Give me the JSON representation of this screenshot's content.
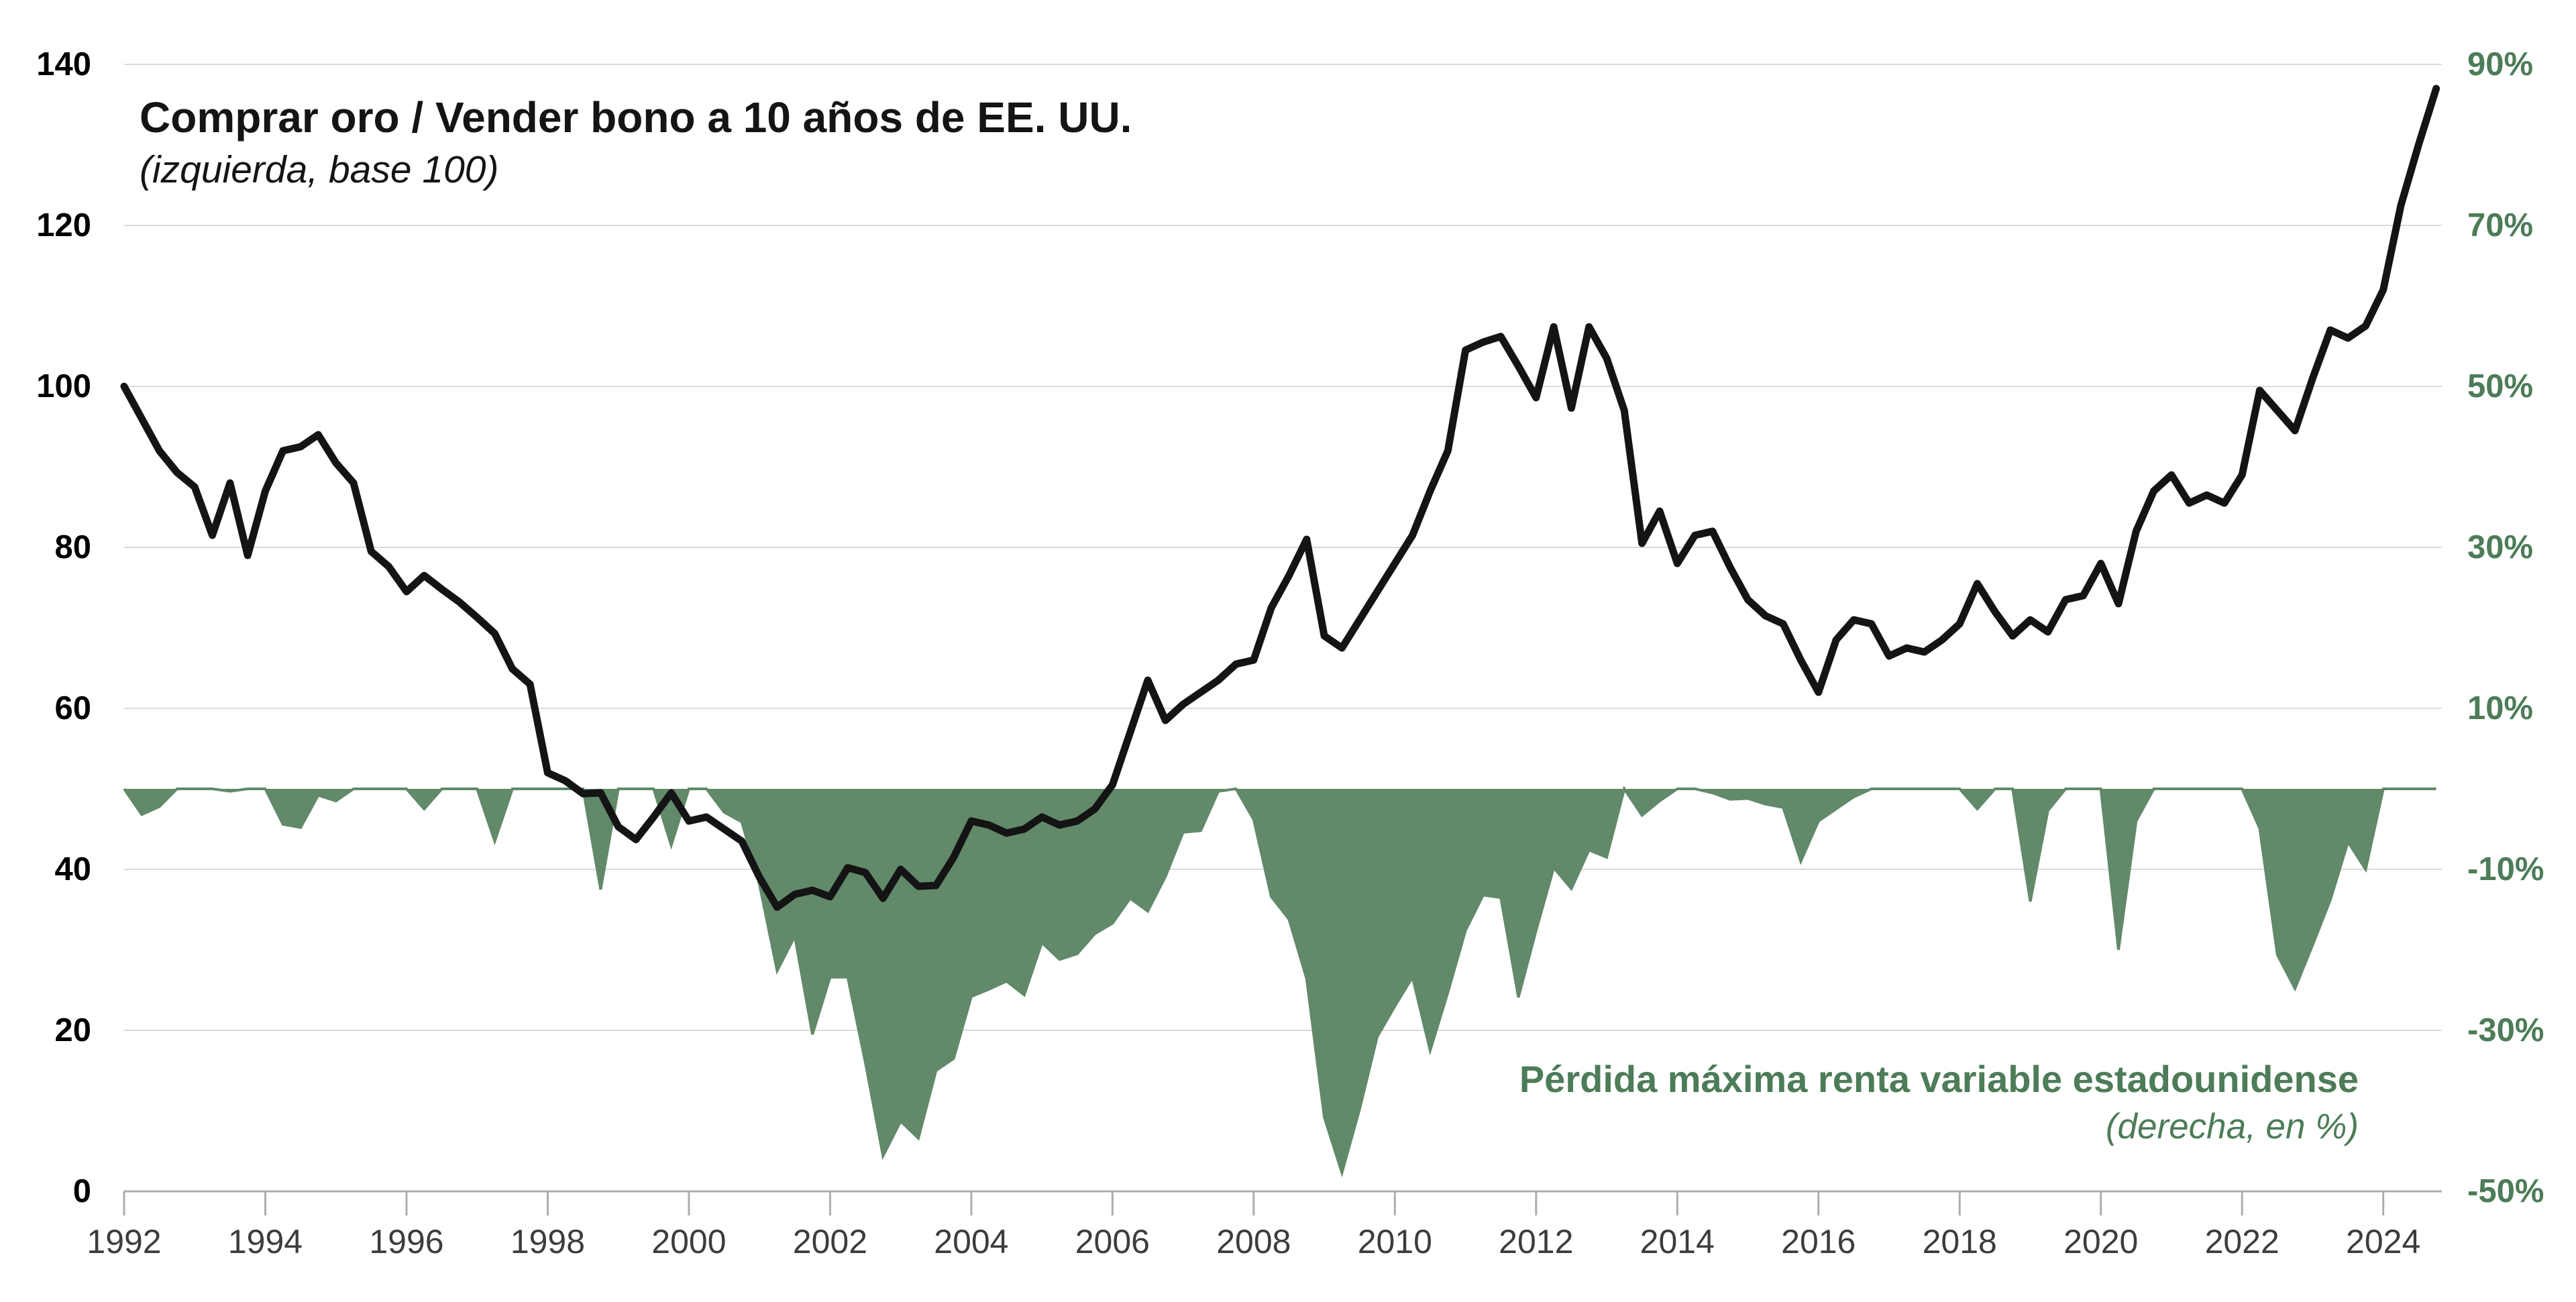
{
  "title": {
    "line1": "Comprar oro / Vender bono a 10 años de EE. UU.",
    "line2": "(izquierda, base 100)"
  },
  "annotation": {
    "line1": "Pérdida máxima renta variable estadounidense",
    "line2": "(derecha, en %)"
  },
  "colors": {
    "line": "#141414",
    "area_fill": "#61896A",
    "area_edge": "#61896A",
    "green_text": "#4D7C58",
    "grid": "#DADADA",
    "axis": "#ADADAD",
    "x_label": "#3C3C3C",
    "y_left_label": "#000000",
    "background": "#FFFFFF"
  },
  "axes": {
    "left": {
      "values": [
        0,
        20,
        40,
        60,
        80,
        100,
        120,
        140
      ],
      "labels": [
        "0",
        "20",
        "40",
        "60",
        "80",
        "100",
        "120",
        "140"
      ]
    },
    "right": {
      "values": [
        -50,
        -30,
        -10,
        10,
        30,
        50,
        70,
        90
      ],
      "labels": [
        "-50%",
        "-30%",
        "-10%",
        "10%",
        "30%",
        "50%",
        "70%",
        "90%"
      ]
    },
    "x": {
      "values": [
        1992,
        1994,
        1996,
        1998,
        2000,
        2002,
        2004,
        2006,
        2008,
        2010,
        2012,
        2014,
        2016,
        2018,
        2020,
        2022,
        2024
      ],
      "labels": [
        "1992",
        "1994",
        "1996",
        "1998",
        "2000",
        "2002",
        "2004",
        "2006",
        "2008",
        "2010",
        "2012",
        "2014",
        "2016",
        "2018",
        "2020",
        "2022",
        "2024"
      ]
    }
  },
  "chart_data": {
    "type": "line",
    "title": "Comprar oro / Vender bono a 10 años de EE. UU.",
    "x_start": 1992,
    "x_step": 0.25,
    "x_range": [
      1992,
      2024.85
    ],
    "left_axis": {
      "label": "izquierda, base 100",
      "ylim": [
        0,
        140
      ],
      "tick_step": 20
    },
    "right_axis": {
      "label": "derecha, en %",
      "ylim": [
        -50,
        90
      ],
      "tick_step": 20,
      "unit": "%"
    },
    "grid": "horizontal",
    "series": [
      {
        "name": "Comprar oro / Vender bono a 10 años de EE. UU.",
        "axis": "left",
        "style": "line",
        "color": "#141414",
        "values": [
          100,
          96,
          92,
          89.3,
          87.5,
          81.5,
          88,
          79,
          87,
          92,
          92.5,
          94,
          90.5,
          88,
          79.5,
          77.6,
          74.5,
          76.5,
          74.8,
          73.2,
          71.3,
          69.3,
          64.9,
          63,
          52,
          51,
          49.4,
          49.5,
          45.3,
          43.7,
          46.5,
          49.5,
          46,
          46.5,
          45,
          43.5,
          39,
          35.3,
          36.9,
          37.4,
          36.6,
          40.2,
          39.6,
          36.4,
          40,
          37.9,
          38,
          41.5,
          46,
          45.5,
          44.5,
          45,
          46.5,
          45.5,
          46,
          47.5,
          50.5,
          57,
          63.5,
          58.5,
          60.5,
          62,
          63.5,
          65.5,
          66,
          72.5,
          76.5,
          81,
          69,
          67.5,
          71,
          74.5,
          78,
          81.5,
          87,
          92,
          104.5,
          105.5,
          106.2,
          102.5,
          98.6,
          107.4,
          97.3,
          107.4,
          103.5,
          97,
          80.5,
          84.5,
          78,
          81.5,
          82,
          77.5,
          73.5,
          71.5,
          70.5,
          66,
          62,
          68.5,
          71,
          70.5,
          66.5,
          67.5,
          67,
          68.5,
          70.5,
          75.5,
          72,
          69,
          71,
          69.5,
          73.5,
          74,
          78,
          73,
          82,
          87,
          89,
          85.5,
          86.5,
          85.5,
          89,
          99.5,
          97,
          94.5,
          101,
          107,
          106,
          107.5,
          112,
          122.5,
          130,
          137
        ]
      },
      {
        "name": "Pérdida máxima renta variable estadounidense",
        "axis": "right",
        "style": "area",
        "color": "#61896A",
        "values": [
          0,
          -3.2,
          -2.2,
          0,
          0,
          0,
          -0.3,
          0,
          0,
          -4.4,
          -4.8,
          -0.8,
          -1.5,
          0,
          0,
          0,
          0,
          -2.5,
          0,
          0,
          0,
          -6.5,
          0,
          0,
          0,
          0,
          0,
          -12.5,
          0,
          0,
          0,
          -7,
          0,
          0,
          -2.9,
          -4.1,
          -11.9,
          -22.6,
          -18.3,
          -30.5,
          -23.4,
          -23.4,
          -34,
          -45.6,
          -41.3,
          -43.4,
          -35,
          -33.5,
          -25.8,
          -24.9,
          -23.9,
          -25.6,
          -19.1,
          -21.2,
          -20.5,
          -18,
          -16.7,
          -13.6,
          -15.2,
          -10.9,
          -5.4,
          -5.2,
          -0.3,
          0,
          -3.8,
          -13.4,
          -16.2,
          -23.6,
          -40.8,
          -47.7,
          -39.8,
          -30.8,
          -27,
          -23.4,
          -32.5,
          -25.3,
          -17.6,
          -13.2,
          -13.5,
          -25.9,
          -17.6,
          -9.8,
          -12.4,
          -7.6,
          -8.5,
          0,
          -3.3,
          -1.5,
          0,
          0,
          -0.5,
          -1.3,
          -1.2,
          -1.9,
          -2.3,
          -9,
          -4,
          -2.5,
          -1,
          0,
          0,
          0,
          0,
          0,
          0,
          -2.5,
          0,
          0,
          -14,
          -2.7,
          0,
          0,
          0,
          -20,
          -4,
          0,
          0,
          0,
          0,
          0,
          0,
          -4.9,
          -20.6,
          -24.8,
          -19.4,
          -13.8,
          -6.6,
          -10,
          0,
          0,
          0,
          0
        ]
      }
    ]
  }
}
